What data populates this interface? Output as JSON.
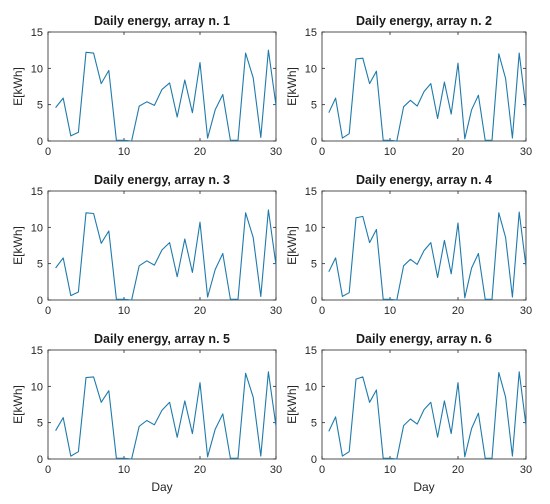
{
  "figure": {
    "background": "#ffffff",
    "axis_color": "#262626",
    "line_color": "#1f7aab"
  },
  "chart_data": [
    {
      "type": "line",
      "title": "Daily energy, array n. 1",
      "xlabel": "",
      "ylabel": "E[kWh]",
      "xlim": [
        0,
        30
      ],
      "ylim": [
        0,
        15
      ],
      "xticks": [
        0,
        10,
        20,
        30
      ],
      "yticks": [
        0,
        5,
        10,
        15
      ],
      "grid": false,
      "series": [
        {
          "x": [
            1,
            2,
            3,
            4,
            5,
            6,
            7,
            8,
            9,
            10,
            11,
            12,
            13,
            14,
            15,
            16,
            17,
            18,
            19,
            20,
            21,
            22,
            23,
            24,
            25,
            26,
            27,
            28,
            29,
            30
          ],
          "values": [
            4.6,
            5.9,
            0.7,
            1.2,
            12.2,
            12.1,
            7.9,
            9.7,
            0.1,
            0.1,
            0.0,
            4.8,
            5.4,
            4.9,
            7.1,
            8.0,
            3.3,
            8.4,
            3.9,
            10.8,
            0.4,
            4.3,
            6.4,
            0.1,
            0.1,
            12.1,
            8.7,
            0.5,
            12.5,
            4.9
          ]
        }
      ]
    },
    {
      "type": "line",
      "title": "Daily energy, array n. 2",
      "xlabel": "",
      "ylabel": "E[kWh]",
      "xlim": [
        0,
        30
      ],
      "ylim": [
        0,
        15
      ],
      "xticks": [
        0,
        10,
        20,
        30
      ],
      "yticks": [
        0,
        5,
        10,
        15
      ],
      "grid": false,
      "series": [
        {
          "x": [
            1,
            2,
            3,
            4,
            5,
            6,
            7,
            8,
            9,
            10,
            11,
            12,
            13,
            14,
            15,
            16,
            17,
            18,
            19,
            20,
            21,
            22,
            23,
            24,
            25,
            26,
            27,
            28,
            29,
            30
          ],
          "values": [
            3.9,
            5.9,
            0.4,
            1.0,
            11.3,
            11.4,
            7.9,
            9.6,
            0.1,
            0.1,
            0.0,
            4.7,
            5.6,
            4.8,
            6.8,
            7.9,
            3.1,
            8.1,
            3.7,
            10.7,
            0.3,
            4.3,
            6.3,
            0.1,
            0.1,
            12.0,
            8.6,
            0.4,
            12.1,
            4.5
          ]
        }
      ]
    },
    {
      "type": "line",
      "title": "Daily energy, array n. 3",
      "xlabel": "",
      "ylabel": "E[kWh]",
      "xlim": [
        0,
        30
      ],
      "ylim": [
        0,
        15
      ],
      "xticks": [
        0,
        10,
        20,
        30
      ],
      "yticks": [
        0,
        5,
        10,
        15
      ],
      "grid": false,
      "series": [
        {
          "x": [
            1,
            2,
            3,
            4,
            5,
            6,
            7,
            8,
            9,
            10,
            11,
            12,
            13,
            14,
            15,
            16,
            17,
            18,
            19,
            20,
            21,
            22,
            23,
            24,
            25,
            26,
            27,
            28,
            29,
            30
          ],
          "values": [
            4.4,
            5.8,
            0.6,
            1.1,
            12.0,
            11.9,
            7.8,
            9.5,
            0.1,
            0.1,
            0.0,
            4.7,
            5.4,
            4.8,
            6.9,
            7.9,
            3.2,
            8.4,
            3.8,
            10.7,
            0.4,
            4.2,
            6.4,
            0.1,
            0.1,
            12.0,
            8.6,
            0.5,
            12.4,
            4.8
          ]
        }
      ]
    },
    {
      "type": "line",
      "title": "Daily energy, array n. 4",
      "xlabel": "",
      "ylabel": "E[kWh]",
      "xlim": [
        0,
        30
      ],
      "ylim": [
        0,
        15
      ],
      "xticks": [
        0,
        10,
        20,
        30
      ],
      "yticks": [
        0,
        5,
        10,
        15
      ],
      "grid": false,
      "series": [
        {
          "x": [
            1,
            2,
            3,
            4,
            5,
            6,
            7,
            8,
            9,
            10,
            11,
            12,
            13,
            14,
            15,
            16,
            17,
            18,
            19,
            20,
            21,
            22,
            23,
            24,
            25,
            26,
            27,
            28,
            29,
            30
          ],
          "values": [
            3.9,
            5.8,
            0.5,
            1.0,
            11.3,
            11.5,
            7.9,
            9.7,
            0.1,
            0.1,
            0.0,
            4.7,
            5.6,
            4.9,
            6.8,
            7.9,
            3.1,
            8.2,
            3.6,
            10.6,
            0.3,
            4.4,
            6.4,
            0.1,
            0.1,
            12.0,
            8.6,
            0.4,
            12.1,
            4.6
          ]
        }
      ]
    },
    {
      "type": "line",
      "title": "Daily energy, array n. 5",
      "xlabel": "Day",
      "ylabel": "E[kWh]",
      "xlim": [
        0,
        30
      ],
      "ylim": [
        0,
        15
      ],
      "xticks": [
        0,
        10,
        20,
        30
      ],
      "yticks": [
        0,
        5,
        10,
        15
      ],
      "grid": false,
      "series": [
        {
          "x": [
            1,
            2,
            3,
            4,
            5,
            6,
            7,
            8,
            9,
            10,
            11,
            12,
            13,
            14,
            15,
            16,
            17,
            18,
            19,
            20,
            21,
            22,
            23,
            24,
            25,
            26,
            27,
            28,
            29,
            30
          ],
          "values": [
            3.9,
            5.7,
            0.4,
            1.0,
            11.2,
            11.3,
            7.8,
            9.4,
            0.1,
            0.1,
            0.0,
            4.5,
            5.3,
            4.7,
            6.7,
            7.8,
            3.0,
            8.0,
            3.5,
            10.5,
            0.3,
            4.1,
            6.2,
            0.1,
            0.1,
            11.8,
            8.5,
            0.4,
            12.0,
            4.5
          ]
        }
      ]
    },
    {
      "type": "line",
      "title": "Daily energy, array n. 6",
      "xlabel": "Day",
      "ylabel": "E[kWh]",
      "xlim": [
        0,
        30
      ],
      "ylim": [
        0,
        15
      ],
      "xticks": [
        0,
        10,
        20,
        30
      ],
      "yticks": [
        0,
        5,
        10,
        15
      ],
      "grid": false,
      "series": [
        {
          "x": [
            1,
            2,
            3,
            4,
            5,
            6,
            7,
            8,
            9,
            10,
            11,
            12,
            13,
            14,
            15,
            16,
            17,
            18,
            19,
            20,
            21,
            22,
            23,
            24,
            25,
            26,
            27,
            28,
            29,
            30
          ],
          "values": [
            3.8,
            5.8,
            0.4,
            1.0,
            11.0,
            11.3,
            7.8,
            9.5,
            0.1,
            0.1,
            0.0,
            4.6,
            5.5,
            4.8,
            6.8,
            7.8,
            3.0,
            8.0,
            3.5,
            10.5,
            0.3,
            4.2,
            6.3,
            0.1,
            0.1,
            11.9,
            8.5,
            0.4,
            12.0,
            4.6
          ]
        }
      ]
    }
  ]
}
